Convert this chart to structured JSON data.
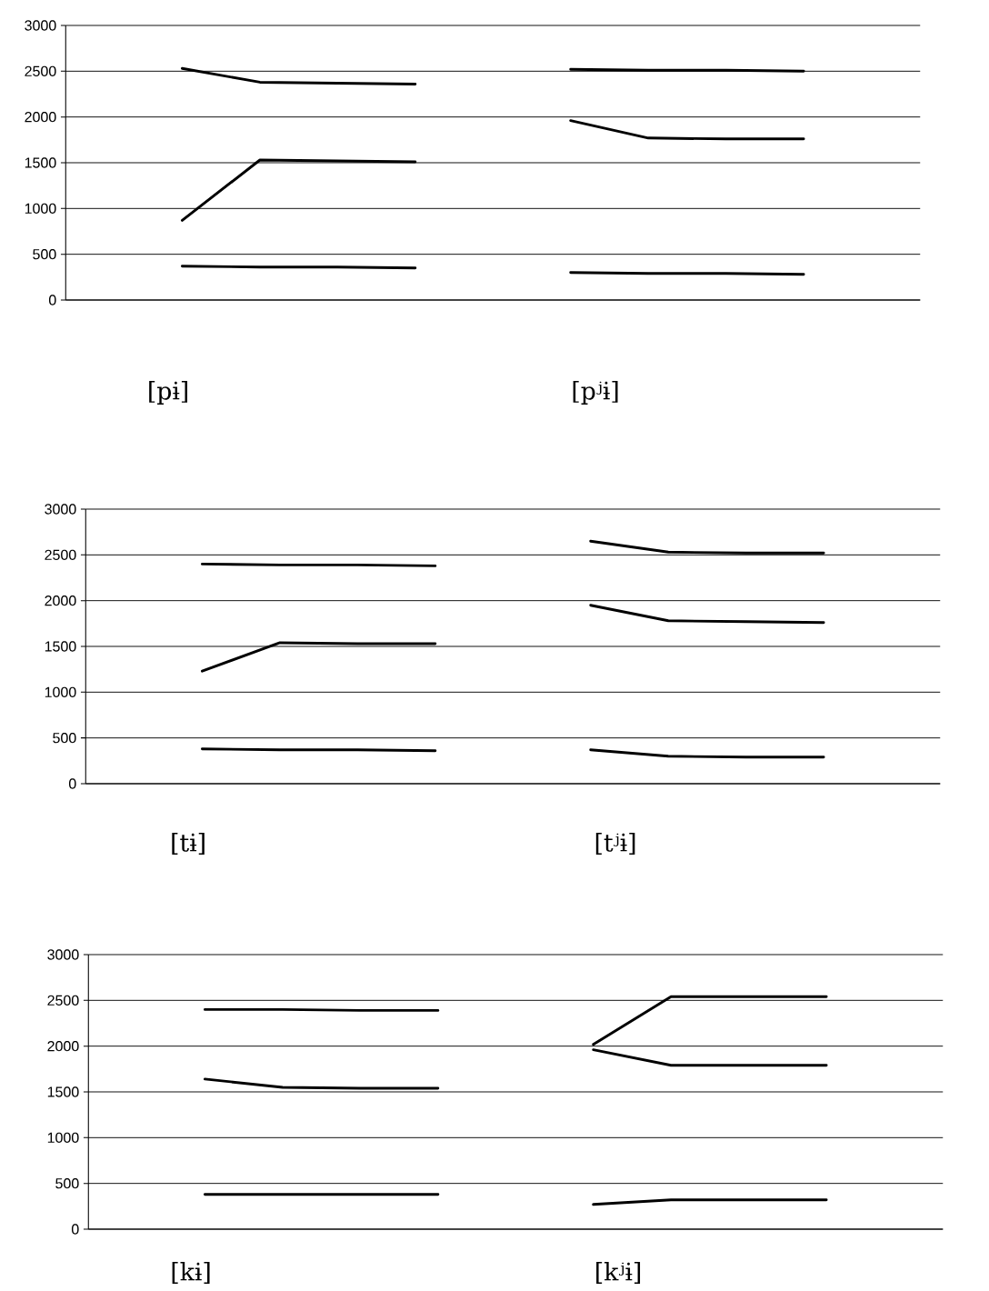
{
  "chart_data": [
    {
      "type": "line",
      "categories": [
        null,
        null,
        null,
        null,
        null,
        null,
        null,
        null,
        null,
        null,
        null
      ],
      "ylim": [
        0,
        3000
      ],
      "yticks": [
        0,
        500,
        1000,
        1500,
        2000,
        2500,
        3000
      ],
      "grid": "y",
      "tick_labels": "y",
      "annotations": [
        "[pɨ]",
        "[pʲɨ]"
      ],
      "series": [
        {
          "color": "#000000",
          "values": [
            null,
            2530,
            2380,
            2370,
            2360,
            null,
            null,
            null,
            null,
            null,
            null
          ]
        },
        {
          "color": "#000000",
          "values": [
            null,
            870,
            1530,
            1520,
            1510,
            null,
            null,
            null,
            null,
            null,
            null
          ]
        },
        {
          "color": "#000000",
          "values": [
            null,
            370,
            360,
            360,
            350,
            null,
            null,
            null,
            null,
            null,
            null
          ]
        },
        {
          "color": "#000000",
          "values": [
            null,
            null,
            null,
            null,
            null,
            null,
            2520,
            2510,
            2510,
            2500,
            null
          ]
        },
        {
          "color": "#000000",
          "values": [
            null,
            null,
            null,
            null,
            null,
            null,
            1960,
            1770,
            1760,
            1760,
            null
          ]
        },
        {
          "color": "#000000",
          "values": [
            null,
            null,
            null,
            null,
            null,
            null,
            300,
            290,
            290,
            280,
            null
          ]
        }
      ]
    },
    {
      "type": "line",
      "categories": [
        null,
        null,
        null,
        null,
        null,
        null,
        null,
        null,
        null,
        null,
        null
      ],
      "ylim": [
        0,
        3000
      ],
      "yticks": [
        0,
        500,
        1000,
        1500,
        2000,
        2500,
        3000
      ],
      "grid": "y",
      "tick_labels": "y",
      "annotations": [
        "[tɨ]",
        "[tʲɨ]"
      ],
      "series": [
        {
          "color": "#000000",
          "values": [
            null,
            2400,
            2390,
            2390,
            2380,
            null,
            null,
            null,
            null,
            null,
            null
          ]
        },
        {
          "color": "#000000",
          "values": [
            null,
            1230,
            1540,
            1530,
            1530,
            null,
            null,
            null,
            null,
            null,
            null
          ]
        },
        {
          "color": "#000000",
          "values": [
            null,
            380,
            370,
            370,
            360,
            null,
            null,
            null,
            null,
            null,
            null
          ]
        },
        {
          "color": "#000000",
          "values": [
            null,
            null,
            null,
            null,
            null,
            null,
            2650,
            2530,
            2520,
            2520,
            null
          ]
        },
        {
          "color": "#000000",
          "values": [
            null,
            null,
            null,
            null,
            null,
            null,
            1950,
            1780,
            1770,
            1760,
            null
          ]
        },
        {
          "color": "#000000",
          "values": [
            null,
            null,
            null,
            null,
            null,
            null,
            370,
            300,
            290,
            290,
            null
          ]
        }
      ]
    },
    {
      "type": "line",
      "categories": [
        null,
        null,
        null,
        null,
        null,
        null,
        null,
        null,
        null,
        null,
        null
      ],
      "ylim": [
        0,
        3000
      ],
      "yticks": [
        0,
        500,
        1000,
        1500,
        2000,
        2500,
        3000
      ],
      "grid": "y",
      "tick_labels": "y",
      "annotations": [
        "[kɨ]",
        "[kʲɨ]"
      ],
      "series": [
        {
          "color": "#000000",
          "values": [
            null,
            2400,
            2400,
            2390,
            2390,
            null,
            null,
            null,
            null,
            null,
            null
          ]
        },
        {
          "color": "#000000",
          "values": [
            null,
            1640,
            1550,
            1540,
            1540,
            null,
            null,
            null,
            null,
            null,
            null
          ]
        },
        {
          "color": "#000000",
          "values": [
            null,
            380,
            380,
            380,
            380,
            null,
            null,
            null,
            null,
            null,
            null
          ]
        },
        {
          "color": "#000000",
          "values": [
            null,
            null,
            null,
            null,
            null,
            null,
            2020,
            2540,
            2540,
            2540,
            null
          ]
        },
        {
          "color": "#000000",
          "values": [
            null,
            null,
            null,
            null,
            null,
            null,
            1960,
            1790,
            1790,
            1790,
            null
          ]
        },
        {
          "color": "#000000",
          "values": [
            null,
            null,
            null,
            null,
            null,
            null,
            270,
            320,
            320,
            320,
            null
          ]
        }
      ]
    }
  ]
}
